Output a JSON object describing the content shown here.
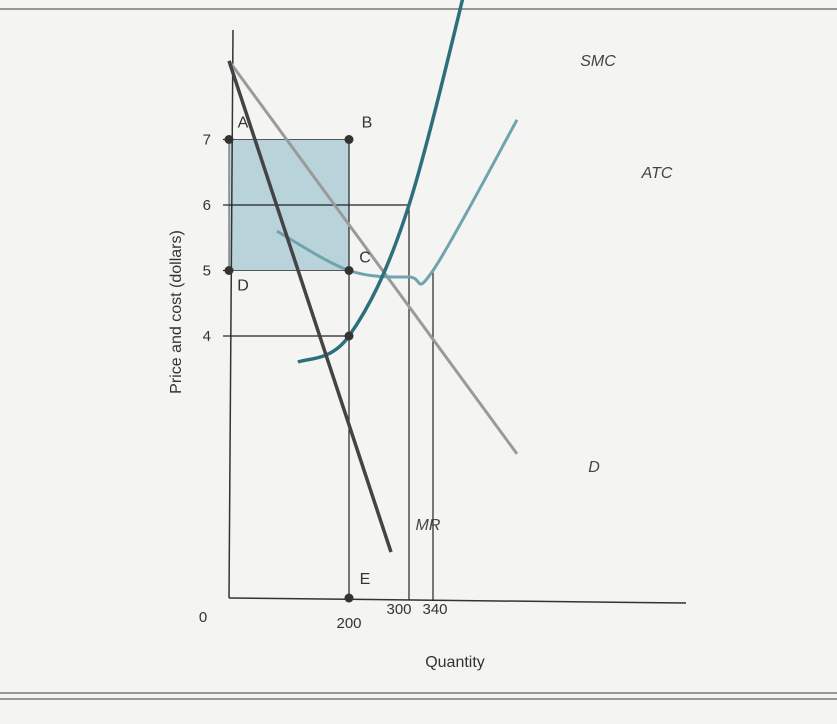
{
  "chart_data": {
    "type": "line",
    "title": "",
    "xlabel": "Quantity",
    "ylabel": "Price and cost (dollars)",
    "origin_label": "0",
    "x_ticks": [
      200,
      300,
      340
    ],
    "y_ticks": [
      4,
      5,
      6,
      7
    ],
    "colors": {
      "demand": "#9a9a9a",
      "marginal_revenue": "#444444",
      "smc": "#2e6f7e",
      "atc": "#6fa3ad",
      "profit_area": "#b9d3da",
      "axis": "#333333",
      "guides": "#222222"
    },
    "series": [
      {
        "name": "D",
        "points": [
          [
            0,
            8.2
          ],
          [
            480,
            2.2
          ]
        ]
      },
      {
        "name": "MR",
        "points": [
          [
            0,
            8.2
          ],
          [
            270,
            0.7
          ]
        ]
      },
      {
        "name": "SMC",
        "points": [
          [
            115,
            3.6
          ],
          [
            200,
            4.0
          ],
          [
            300,
            6.0
          ],
          [
            420,
            10.3
          ]
        ]
      },
      {
        "name": "ATC",
        "points": [
          [
            80,
            5.6
          ],
          [
            200,
            5.0
          ],
          [
            300,
            4.9
          ],
          [
            340,
            5.0
          ],
          [
            480,
            7.3
          ]
        ]
      }
    ],
    "points": [
      {
        "label": "A",
        "x": 0,
        "y": 7
      },
      {
        "label": "B",
        "x": 200,
        "y": 7
      },
      {
        "label": "C",
        "x": 200,
        "y": 5
      },
      {
        "label": "D",
        "x": 0,
        "y": 5
      },
      {
        "label": "E",
        "x": 200,
        "y": 0
      }
    ]
  }
}
